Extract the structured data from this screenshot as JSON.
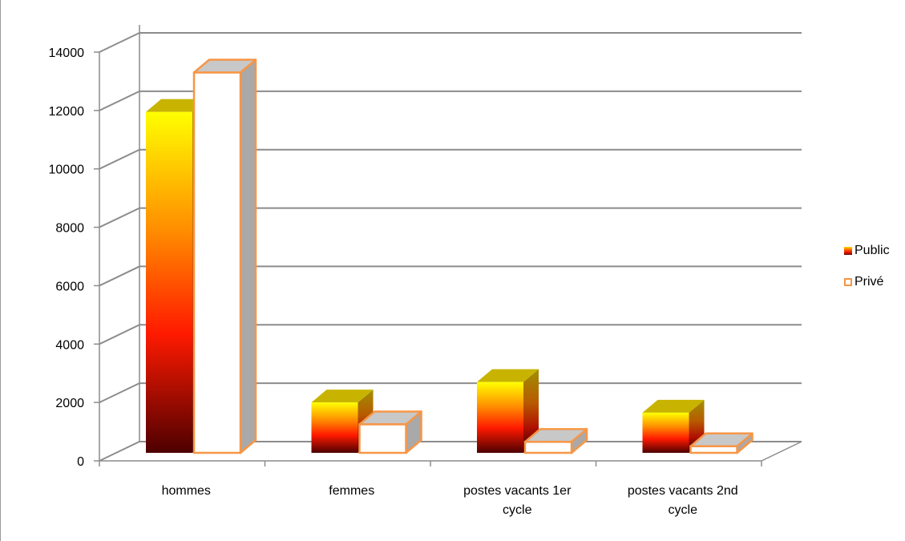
{
  "chart_data": {
    "type": "bar",
    "categories": [
      "hommes",
      "femmes",
      "postes vacants 1er cycle",
      "postes vacants 2nd cycle"
    ],
    "category_lines": [
      [
        "hommes"
      ],
      [
        "femmes"
      ],
      [
        "postes vacants 1er",
        "cycle"
      ],
      [
        "postes vacants 2nd",
        "cycle"
      ]
    ],
    "series": [
      {
        "name": "Public",
        "values": [
          11950,
          2000,
          2700,
          1650
        ]
      },
      {
        "name": "Privé",
        "values": [
          13300,
          1250,
          650,
          500
        ]
      }
    ],
    "y_ticks": [
      "0",
      "2000",
      "4000",
      "6000",
      "8000",
      "10000",
      "12000",
      "14000"
    ],
    "ylim": [
      0,
      14000
    ],
    "grid": true,
    "legend_position": "right",
    "three_d": true,
    "colors": {
      "public_top": "#ffff00",
      "public_mid": "#ff2200",
      "public_bottom": "#4d0000",
      "public_cap": "#c8b400",
      "prive_face": "#ffffff",
      "prive_border": "#f79646",
      "prive_side": "#a9a9a9",
      "prive_cap": "#c8c8c8",
      "grid": "#8c8c8c"
    }
  }
}
